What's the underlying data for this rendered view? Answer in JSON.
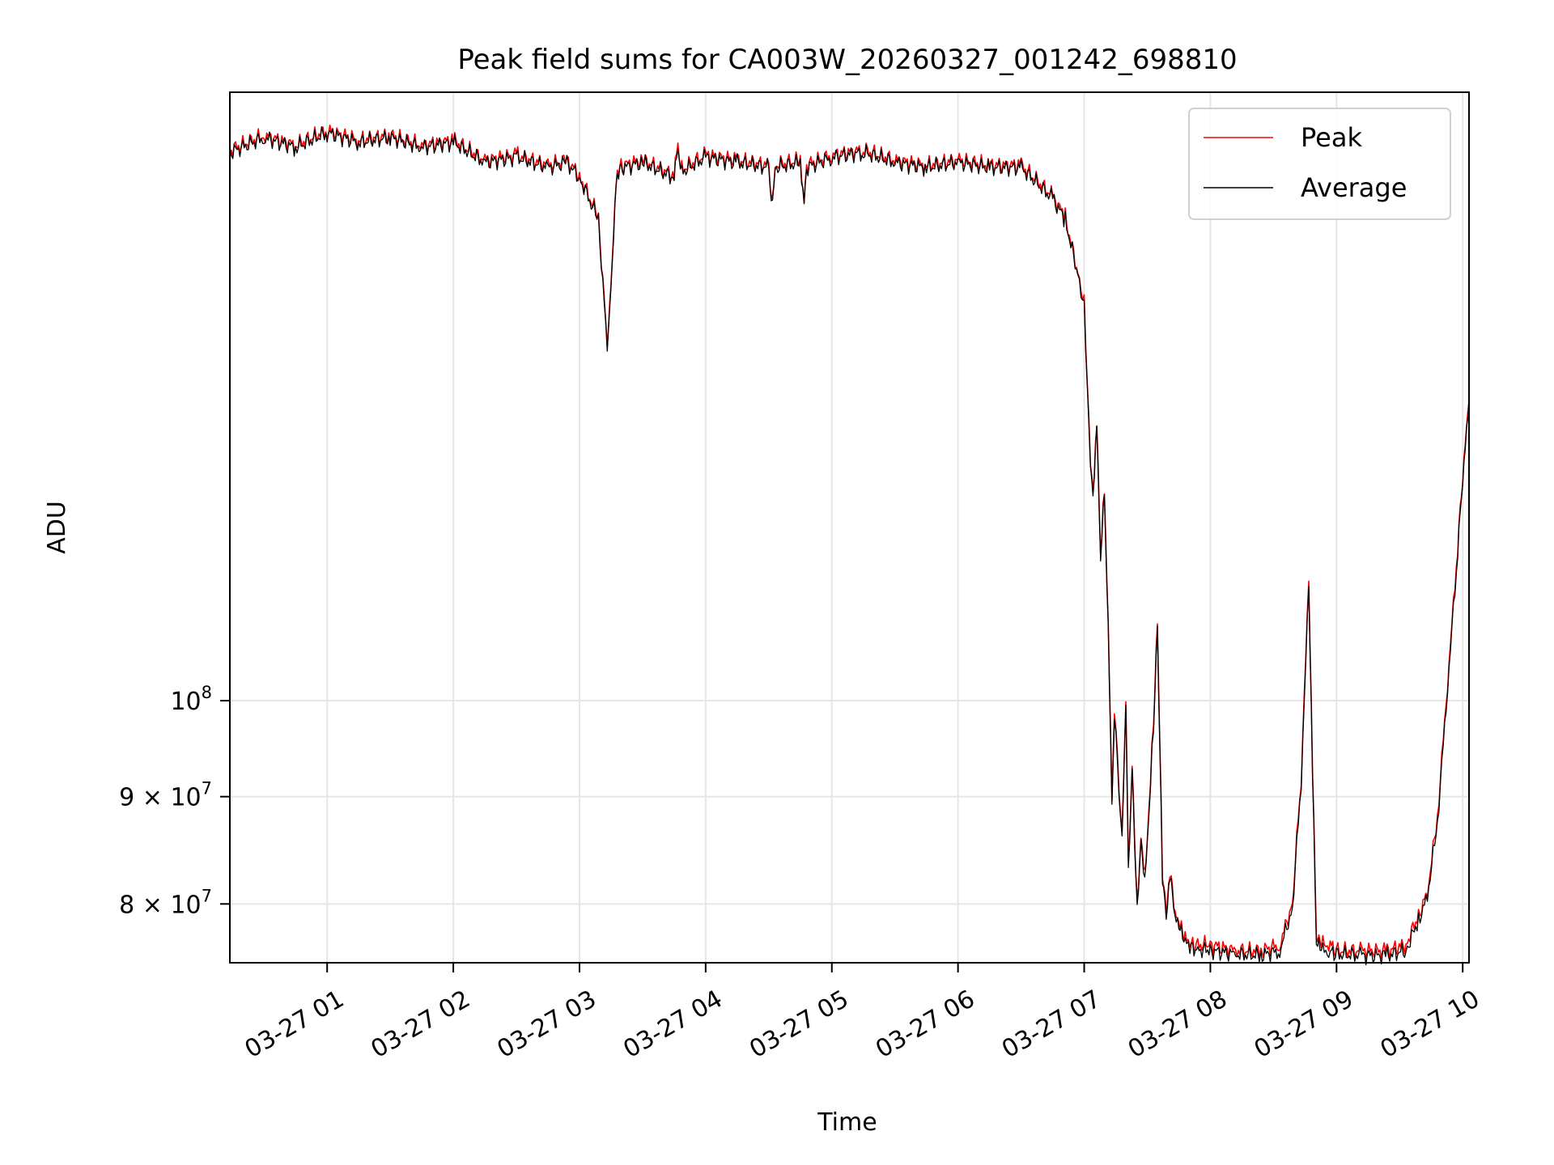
{
  "chart_data": {
    "type": "line",
    "title": "Peak field sums for CA003W_20260327_001242_698810",
    "xlabel": "Time",
    "ylabel": "ADU",
    "y_scale": "log",
    "grid": true,
    "legend_position": "top-right",
    "xlim_hours": [
      0.229,
      10.05
    ],
    "ylim": [
      75000000,
      195000000
    ],
    "x_ticks": [
      {
        "hour": 1,
        "label": "03-27 01"
      },
      {
        "hour": 2,
        "label": "03-27 02"
      },
      {
        "hour": 3,
        "label": "03-27 03"
      },
      {
        "hour": 4,
        "label": "03-27 04"
      },
      {
        "hour": 5,
        "label": "03-27 05"
      },
      {
        "hour": 6,
        "label": "03-27 06"
      },
      {
        "hour": 7,
        "label": "03-27 07"
      },
      {
        "hour": 8,
        "label": "03-27 08"
      },
      {
        "hour": 9,
        "label": "03-27 09"
      },
      {
        "hour": 10,
        "label": "03-27 10"
      }
    ],
    "y_ticks": [
      {
        "value": 100000000,
        "base": "10",
        "exp": "8",
        "mantissa": ""
      },
      {
        "value": 90000000,
        "base": "10",
        "exp": "7",
        "mantissa": "9 × "
      },
      {
        "value": 80000000,
        "base": "10",
        "exp": "7",
        "mantissa": "8 × "
      }
    ],
    "x_hours": [
      0.23,
      0.5,
      0.75,
      1.0,
      1.25,
      1.5,
      1.75,
      2.0,
      2.25,
      2.5,
      2.75,
      2.9,
      3.0,
      3.15,
      3.22,
      3.26,
      3.28,
      3.3,
      3.35,
      3.5,
      3.75,
      3.78,
      3.8,
      4.0,
      4.25,
      4.5,
      4.52,
      4.55,
      4.75,
      4.78,
      4.8,
      5.0,
      5.25,
      5.5,
      5.75,
      6.0,
      6.25,
      6.5,
      6.75,
      6.85,
      6.95,
      7.0,
      7.05,
      7.07,
      7.1,
      7.13,
      7.16,
      7.2,
      7.22,
      7.24,
      7.3,
      7.33,
      7.35,
      7.38,
      7.42,
      7.45,
      7.48,
      7.5,
      7.55,
      7.58,
      7.62,
      7.65,
      7.68,
      7.72,
      7.76,
      7.8,
      7.85,
      7.9,
      8.0,
      8.2,
      8.4,
      8.55,
      8.65,
      8.72,
      8.78,
      8.81,
      8.84,
      8.88,
      8.95,
      9.0,
      9.2,
      9.4,
      9.55,
      9.65,
      9.72,
      9.8,
      9.88,
      9.95,
      10.0,
      10.05
    ],
    "series": [
      {
        "name": "Peak",
        "color": "#ff0000",
        "values": [
          183000000,
          186000000,
          184000000,
          187000000,
          185000000,
          186000000,
          184000000,
          185000000,
          181000000,
          182000000,
          180000000,
          181000000,
          178000000,
          170000000,
          148000000,
          162000000,
          174000000,
          179000000,
          180000000,
          181000000,
          178000000,
          184000000,
          179000000,
          182000000,
          181000000,
          180000000,
          172000000,
          180000000,
          181000000,
          174000000,
          180000000,
          182000000,
          183000000,
          181000000,
          180000000,
          181000000,
          180000000,
          180000000,
          174000000,
          170000000,
          160000000,
          155000000,
          130000000,
          126000000,
          136000000,
          118000000,
          126000000,
          103000000,
          89500000,
          99000000,
          86000000,
          100000000,
          83000000,
          93000000,
          80000000,
          86000000,
          83000000,
          86000000,
          98000000,
          109000000,
          83000000,
          79000000,
          83000000,
          79000000,
          78000000,
          77000000,
          76500000,
          76500000,
          76500000,
          76000000,
          76000000,
          76500000,
          80000000,
          92000000,
          114000000,
          93000000,
          77000000,
          76500000,
          76500000,
          76000000,
          76000000,
          76000000,
          76500000,
          79000000,
          81000000,
          88000000,
          102000000,
          116000000,
          128000000,
          139000000
        ]
      },
      {
        "name": "Average",
        "color": "#000000",
        "values": [
          182500000,
          185500000,
          183500000,
          186500000,
          184500000,
          185500000,
          183500000,
          184500000,
          180500000,
          181500000,
          179500000,
          180500000,
          177500000,
          169500000,
          147500000,
          161500000,
          173500000,
          178500000,
          179500000,
          180500000,
          177500000,
          183500000,
          178500000,
          181500000,
          180500000,
          179500000,
          171500000,
          179500000,
          180500000,
          173500000,
          179500000,
          181500000,
          182500000,
          180500000,
          179500000,
          180500000,
          179500000,
          179500000,
          173500000,
          169500000,
          159500000,
          154500000,
          129500000,
          125500000,
          135500000,
          117500000,
          125500000,
          102500000,
          89000000,
          98500000,
          85600000,
          99500000,
          82600000,
          92500000,
          79600000,
          85600000,
          82600000,
          85600000,
          97500000,
          108500000,
          82600000,
          78600000,
          82600000,
          78700000,
          77700000,
          76700000,
          76200000,
          76100000,
          76000000,
          75700000,
          75600000,
          76000000,
          79600000,
          91500000,
          113500000,
          92500000,
          76600000,
          76000000,
          75900000,
          75700000,
          75600000,
          75600000,
          76000000,
          78600000,
          80600000,
          87500000,
          101500000,
          115500000,
          127500000,
          138500000
        ]
      }
    ]
  }
}
